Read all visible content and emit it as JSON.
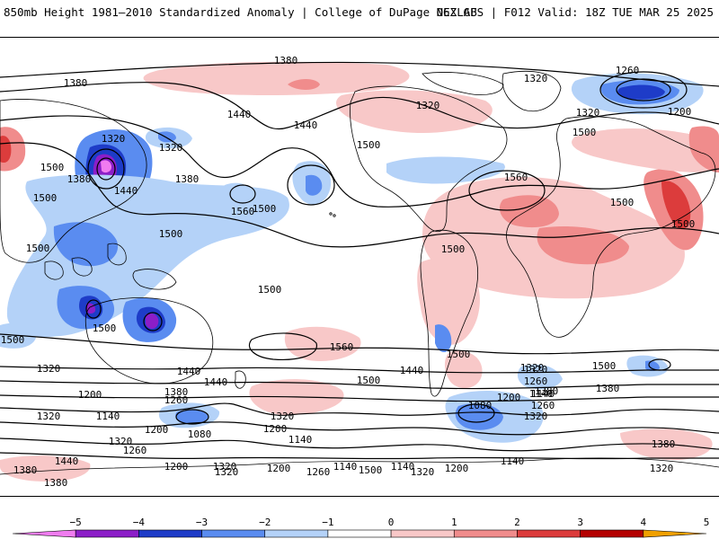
{
  "header": {
    "title": "850mb Height 1981–2010 Standardized Anomaly | College of DuPage NEXLAB",
    "run_info": "06Z GFS | F012 Valid: 18Z TUE MAR 25 2025"
  },
  "colors": {
    "neg5": "#f07cf0",
    "neg4": "#8c1ec8",
    "neg3": "#1e3cc8",
    "neg2": "#5a8cf0",
    "neg1": "#b4d2f8",
    "pos1": "#f8c8c8",
    "pos2": "#f08c8c",
    "pos3": "#dc3c3c",
    "pos4": "#b40000",
    "pos5": "#f0a000"
  },
  "legend": {
    "ticks": [
      "−5",
      "−4",
      "−3",
      "−2",
      "−1",
      "0",
      "1",
      "2",
      "3",
      "4",
      "5"
    ],
    "bins": [
      "neg5",
      "neg4",
      "neg3",
      "neg2",
      "neg1",
      "neutral",
      "pos1",
      "pos2",
      "pos3",
      "pos4",
      "pos5"
    ]
  },
  "contour_labels": [
    "1380",
    "1380",
    "1320",
    "1260",
    "1200",
    "1320",
    "1320",
    "1440",
    "1440",
    "1320",
    "1320",
    "1380",
    "1500",
    "1560",
    "1500",
    "1500",
    "1440",
    "1380",
    "1500",
    "1560",
    "1500",
    "1500",
    "1500",
    "1500",
    "1500",
    "1500",
    "1500",
    "1500",
    "1440",
    "1380",
    "1320",
    "1500",
    "1560",
    "1500",
    "1440",
    "1500",
    "1440",
    "1380",
    "1320",
    "1200",
    "1260",
    "1140",
    "1320",
    "1260",
    "1200",
    "1140",
    "1380",
    "1320",
    "1260",
    "1200",
    "1380",
    "1440",
    "1320",
    "1200",
    "1140",
    "1140",
    "1320",
    "1200",
    "1260",
    "1140",
    "1200",
    "1320",
    "1140",
    "1320",
    "1500",
    "1080",
    "1080",
    "1320",
    "1140",
    "1500",
    "1320",
    "1380",
    "1260",
    "1200",
    "1320",
    "1380"
  ]
}
